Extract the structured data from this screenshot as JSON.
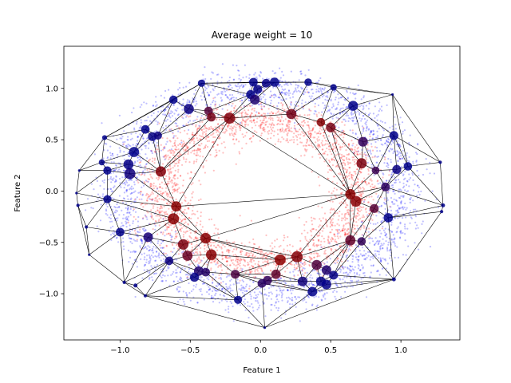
{
  "chart_data": {
    "type": "scatter",
    "title": "Average weight = 10",
    "xlabel": "Feature 1",
    "ylabel": "Feature 2",
    "xlim": [
      -1.4,
      1.42
    ],
    "ylim": [
      -1.45,
      1.41
    ],
    "xticks": [
      -1.0,
      -0.5,
      0.0,
      0.5,
      1.0
    ],
    "xtick_labels": [
      "−1.0",
      "−0.5",
      "0.0",
      "0.5",
      "1.0"
    ],
    "yticks": [
      -1.0,
      -0.5,
      0.0,
      0.5,
      1.0
    ],
    "ytick_labels": [
      "−1.0",
      "−0.5",
      "0.0",
      "0.5",
      "1.0"
    ],
    "grid": false,
    "legend": "none",
    "colors": {
      "inner_ring": "#ff0000",
      "outer_ring": "#0000ff",
      "edges": "#000000",
      "node_mix_low": "#00008b",
      "node_mix_high": "#8b0000"
    },
    "series": [
      {
        "distribution": "ring",
        "center": [
          0,
          0
        ],
        "radius": 0.7,
        "radial_sd": 0.1,
        "count": 2600,
        "color": "#ff0000",
        "alpha": 0.25
      },
      {
        "distribution": "ring",
        "center": [
          0,
          0
        ],
        "radius": 1.0,
        "radial_sd": 0.1,
        "count": 2600,
        "color": "#0000ff",
        "alpha": 0.25
      }
    ],
    "nodes": [
      [
        -0.42,
        1.05
      ],
      [
        -0.05,
        1.06
      ],
      [
        0.1,
        1.06
      ],
      [
        0.34,
        1.06
      ],
      [
        -0.02,
        0.99
      ],
      [
        0.04,
        1.05
      ],
      [
        0.52,
        1.01
      ],
      [
        0.94,
        0.94
      ],
      [
        -0.62,
        0.89
      ],
      [
        0.66,
        0.83
      ],
      [
        -0.51,
        0.8
      ],
      [
        -0.37,
        0.78
      ],
      [
        -0.07,
        0.94
      ],
      [
        -0.04,
        0.89
      ],
      [
        0.22,
        0.75
      ],
      [
        0.43,
        0.67
      ],
      [
        0.5,
        0.62
      ],
      [
        -0.35,
        0.72
      ],
      [
        -0.22,
        0.71
      ],
      [
        -0.82,
        0.6
      ],
      [
        -0.77,
        0.53
      ],
      [
        -0.73,
        0.54
      ],
      [
        0.73,
        0.48
      ],
      [
        0.95,
        0.54
      ],
      [
        -1.11,
        0.52
      ],
      [
        -0.9,
        0.38
      ],
      [
        -1.29,
        0.2
      ],
      [
        -1.13,
        0.28
      ],
      [
        -1.09,
        0.2
      ],
      [
        -0.94,
        0.26
      ],
      [
        -0.93,
        0.17
      ],
      [
        -0.71,
        0.19
      ],
      [
        0.72,
        0.27
      ],
      [
        0.82,
        0.2
      ],
      [
        0.97,
        0.21
      ],
      [
        1.05,
        0.24
      ],
      [
        1.28,
        0.28
      ],
      [
        0.89,
        0.04
      ],
      [
        0.64,
        -0.03
      ],
      [
        -1.31,
        -0.02
      ],
      [
        -1.09,
        -0.08
      ],
      [
        -1.3,
        -0.14
      ],
      [
        -0.6,
        -0.15
      ],
      [
        0.68,
        -0.1
      ],
      [
        0.81,
        -0.17
      ],
      [
        0.91,
        -0.26
      ],
      [
        1.3,
        -0.14
      ],
      [
        1.29,
        -0.2
      ],
      [
        -0.62,
        -0.27
      ],
      [
        -1.24,
        -0.35
      ],
      [
        -1.0,
        -0.4
      ],
      [
        -0.8,
        -0.45
      ],
      [
        -0.55,
        -0.52
      ],
      [
        -0.39,
        -0.46
      ],
      [
        0.64,
        -0.48
      ],
      [
        0.72,
        -0.49
      ],
      [
        -1.22,
        -0.62
      ],
      [
        -0.52,
        -0.63
      ],
      [
        -0.44,
        -0.78
      ],
      [
        -0.35,
        -0.62
      ],
      [
        0.14,
        -0.67
      ],
      [
        0.26,
        -0.64
      ],
      [
        0.4,
        -0.72
      ],
      [
        -0.65,
        -0.68
      ],
      [
        0.47,
        -0.77
      ],
      [
        0.52,
        -0.82
      ],
      [
        -0.18,
        -0.81
      ],
      [
        0.11,
        -0.81
      ],
      [
        -0.39,
        -0.79
      ],
      [
        0.05,
        -0.87
      ],
      [
        0.3,
        -0.88
      ],
      [
        0.43,
        -0.88
      ],
      [
        0.47,
        -0.91
      ],
      [
        -0.97,
        -0.89
      ],
      [
        -0.47,
        -0.84
      ],
      [
        -0.89,
        -0.92
      ],
      [
        -0.16,
        -1.06
      ],
      [
        0.01,
        -0.9
      ],
      [
        0.37,
        -0.98
      ],
      [
        0.95,
        -0.86
      ],
      [
        -0.82,
        -1.02
      ],
      [
        0.03,
        -1.33
      ]
    ],
    "hull_node_indices": [
      81,
      76,
      80,
      75,
      73,
      56,
      49,
      41,
      39,
      26,
      24,
      8,
      0,
      3,
      7,
      35,
      36,
      46,
      47,
      79,
      78
    ]
  }
}
